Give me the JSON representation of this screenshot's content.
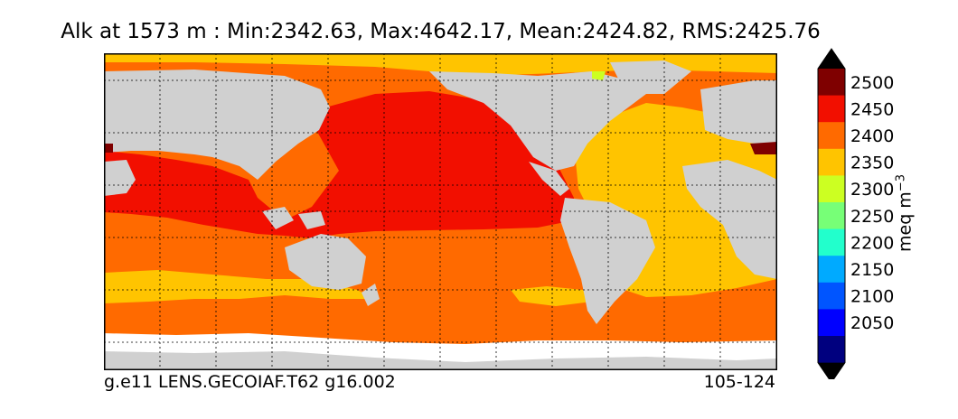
{
  "title": "Alk at 1573 m : Min:2342.63, Max:4642.17, Mean:2424.82, RMS:2425.76",
  "footer": {
    "left": "g.e11 LENS.GECOIAF.T62 g16.002",
    "right": "105-124"
  },
  "colorbar": {
    "unit_main": "meq m",
    "unit_exp": "−3",
    "ticks": [
      "2500",
      "2450",
      "2400",
      "2350",
      "2300",
      "2250",
      "2200",
      "2150",
      "2100",
      "2050"
    ],
    "bins": [
      {
        "upper": 2050,
        "color": "#00007f"
      },
      {
        "upper": 2100,
        "color": "#0000ff"
      },
      {
        "upper": 2150,
        "color": "#0055ff"
      },
      {
        "upper": 2200,
        "color": "#00aaff"
      },
      {
        "upper": 2250,
        "color": "#22ffcc"
      },
      {
        "upper": 2300,
        "color": "#77ff77"
      },
      {
        "upper": 2350,
        "color": "#ccff22"
      },
      {
        "upper": 2400,
        "color": "#ffc400"
      },
      {
        "upper": 2450,
        "color": "#ff6a00"
      },
      {
        "upper": 2500,
        "color": "#f20f00"
      },
      {
        "upper": 2550,
        "color": "#7f0000"
      }
    ],
    "extend": "both",
    "extend_low_color": "#000000",
    "extend_high_color": "#000000"
  },
  "colors": {
    "land": "#d0d0d0",
    "no_data": "#ffffff",
    "band_2350_2400": "#ffc400",
    "band_2400_2450": "#ff6a00",
    "band_2450_2500": "#f20f00",
    "band_above_2500": "#7f0000",
    "band_2300_2350": "#ccff22"
  }
}
